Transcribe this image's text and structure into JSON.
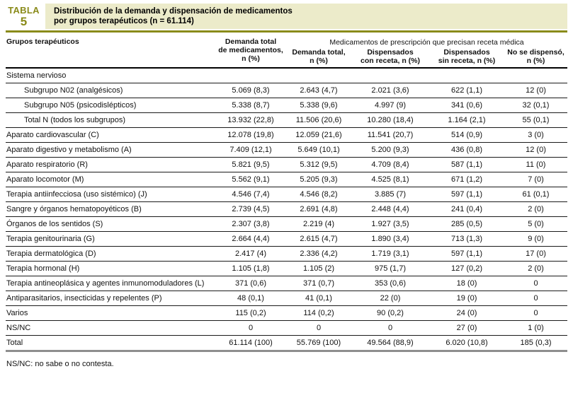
{
  "page": {
    "badge_label": "TABLA",
    "badge_number": "5",
    "title": "Distribución de la demanda y dispensación de medicamentos\npor grupos terapéuticos (n = 61.114)",
    "footnote": "NS/NC: no sabe o no contesta."
  },
  "colors": {
    "accent_olive": "#8a8b1a",
    "title_band": "#ecebca",
    "total_rule_gray": "#8e8e8e"
  },
  "table": {
    "col_groups_label": "Grupos terapéuticos",
    "col_total_demand": "Demanda total\nde medicamentos,\nn (%)",
    "group_header": "Medicamentos de prescripción que precisan receta médica",
    "sub_headers": [
      "Demanda total,\nn (%)",
      "Dispensados\ncon receta, n (%)",
      "Dispensados\nsin receta, n (%)",
      "No se dispensó,\nn (%)"
    ],
    "rows": [
      {
        "label": "Sistema nervioso",
        "section": true,
        "values": [
          "",
          "",
          "",
          "",
          ""
        ]
      },
      {
        "label": "Subgrupo N02 (analgésicos)",
        "indent": true,
        "values": [
          "5.069 (8,3)",
          "2.643 (4,7)",
          "2.021 (3,6)",
          "622 (1,1)",
          "12 (0)"
        ]
      },
      {
        "label": "Subgrupo N05 (psicodislépticos)",
        "indent": true,
        "values": [
          "5.338 (8,7)",
          "5.338 (9,6)",
          "4.997 (9)",
          "341 (0,6)",
          "32 (0,1)"
        ]
      },
      {
        "label": "Total N (todos los subgrupos)",
        "indent": true,
        "values": [
          "13.932 (22,8)",
          "11.506 (20,6)",
          "10.280 (18,4)",
          "1.164 (2,1)",
          "55 (0,1)"
        ]
      },
      {
        "label": "Aparato cardiovascular (C)",
        "values": [
          "12.078 (19,8)",
          "12.059 (21,6)",
          "11.541 (20,7)",
          "514 (0,9)",
          "3 (0)"
        ]
      },
      {
        "label": "Aparato digestivo y metabolismo (A)",
        "values": [
          "7.409 (12,1)",
          "5.649 (10,1)",
          "5.200 (9,3)",
          "436 (0,8)",
          "12 (0)"
        ]
      },
      {
        "label": "Aparato respiratorio (R)",
        "values": [
          "5.821 (9,5)",
          "5.312 (9,5)",
          "4.709 (8,4)",
          "587 (1,1)",
          "11 (0)"
        ]
      },
      {
        "label": "Aparato locomotor (M)",
        "values": [
          "5.562 (9,1)",
          "5.205 (9,3)",
          "4.525 (8,1)",
          "671 (1,2)",
          "7 (0)"
        ]
      },
      {
        "label": "Terapia antiinfecciosa (uso sistémico) (J)",
        "values": [
          "4.546 (7,4)",
          "4.546 (8,2)",
          "3.885 (7)",
          "597 (1,1)",
          "61 (0,1)"
        ]
      },
      {
        "label": "Sangre y órganos hematopoyéticos (B)",
        "values": [
          "2.739 (4,5)",
          "2.691 (4,8)",
          "2.448 (4,4)",
          "241 (0,4)",
          "2 (0)"
        ]
      },
      {
        "label": "Órganos de los sentidos (S)",
        "values": [
          "2.307 (3,8)",
          "2.219 (4)",
          "1.927 (3,5)",
          "285 (0,5)",
          "5 (0)"
        ]
      },
      {
        "label": "Terapia genitourinaria (G)",
        "values": [
          "2.664 (4,4)",
          "2.615 (4,7)",
          "1.890 (3,4)",
          "713 (1,3)",
          "9 (0)"
        ]
      },
      {
        "label": "Terapia dermatológica (D)",
        "values": [
          "2.417 (4)",
          "2.336 (4,2)",
          "1.719 (3,1)",
          "597 (1,1)",
          "17 (0)"
        ]
      },
      {
        "label": "Terapia hormonal (H)",
        "values": [
          "1.105 (1,8)",
          "1.105 (2)",
          "975 (1,7)",
          "127 (0,2)",
          "2 (0)"
        ]
      },
      {
        "label": "Terapia antineoplásica y agentes inmunomoduladores (L)",
        "values": [
          "371 (0,6)",
          "371 (0,7)",
          "353 (0,6)",
          "18 (0)",
          "0"
        ]
      },
      {
        "label": "Antiparasitarios, insecticidas y repelentes (P)",
        "values": [
          "48 (0,1)",
          "41 (0,1)",
          "22 (0)",
          "19 (0)",
          "0"
        ]
      },
      {
        "label": "Varios",
        "values": [
          "115 (0,2)",
          "114 (0,2)",
          "90 (0,2)",
          "24 (0)",
          "0"
        ]
      },
      {
        "label": "NS/NC",
        "values": [
          "0",
          "0",
          "0",
          "27 (0)",
          "1 (0)"
        ]
      },
      {
        "label": "Total",
        "total": true,
        "values": [
          "61.114 (100)",
          "55.769 (100)",
          "49.564 (88,9)",
          "6.020 (10,8)",
          "185 (0,3)"
        ]
      }
    ]
  }
}
